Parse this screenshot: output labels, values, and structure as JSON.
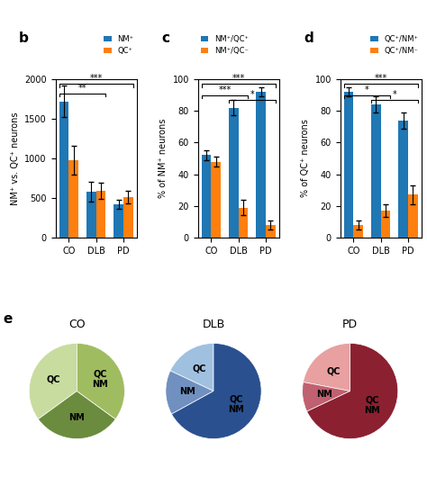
{
  "chart_data": [
    {
      "type": "bar",
      "title": "b",
      "ylabel": "NM⁺ vs. QC⁺ neurons",
      "categories": [
        "CO",
        "DLB",
        "PD"
      ],
      "series": [
        {
          "name": "NM⁺",
          "values": [
            1720,
            580,
            420
          ],
          "errors": [
            200,
            120,
            60
          ]
        },
        {
          "name": "QC⁺",
          "values": [
            980,
            590,
            510
          ],
          "errors": [
            180,
            100,
            80
          ]
        }
      ],
      "ylim": [
        0,
        2000
      ],
      "yticks": [
        0,
        500,
        1000,
        1500,
        2000
      ],
      "legend": "upper right",
      "annotations": [
        {
          "text": "**",
          "from": "CO",
          "to": "DLB",
          "y": 1820
        },
        {
          "text": "***",
          "from": "CO",
          "to": "PD",
          "y": 1940
        }
      ]
    },
    {
      "type": "bar",
      "title": "c",
      "ylabel": "% of NM⁺ neurons",
      "categories": [
        "CO",
        "DLB",
        "PD"
      ],
      "series": [
        {
          "name": "NM⁺/QC⁺",
          "values": [
            52,
            82,
            92
          ],
          "errors": [
            3,
            5,
            3
          ]
        },
        {
          "name": "NM⁺/QC⁻",
          "values": [
            48,
            19,
            8
          ],
          "errors": [
            3,
            5,
            3
          ]
        }
      ],
      "ylim": [
        0,
        100
      ],
      "yticks": [
        0,
        20,
        40,
        60,
        80,
        100
      ],
      "legend": "upper left",
      "annotations": [
        {
          "text": "***",
          "from": "CO",
          "to": "DLB",
          "y": 90
        },
        {
          "text": "***",
          "from": "CO",
          "to": "PD",
          "y": 97
        },
        {
          "text": "*",
          "from": "DLB",
          "to": "PD",
          "y": 87
        }
      ]
    },
    {
      "type": "bar",
      "title": "d",
      "ylabel": "% of QC⁺ neurons",
      "categories": [
        "CO",
        "DLB",
        "PD"
      ],
      "series": [
        {
          "name": "QC⁺/NM⁺",
          "values": [
            92,
            84,
            74
          ],
          "errors": [
            3,
            5,
            5
          ]
        },
        {
          "name": "QC⁺/NM⁻",
          "values": [
            8,
            17,
            27
          ],
          "errors": [
            3,
            4,
            6
          ]
        }
      ],
      "ylim": [
        0,
        100
      ],
      "yticks": [
        0,
        20,
        40,
        60,
        80,
        100
      ],
      "legend": "upper right",
      "annotations": [
        {
          "text": "*",
          "from": "CO",
          "to": "DLB",
          "y": 90
        },
        {
          "text": "***",
          "from": "CO",
          "to": "PD",
          "y": 97
        },
        {
          "text": "*",
          "from": "DLB",
          "to": "PD",
          "y": 87
        }
      ]
    },
    {
      "type": "pie",
      "title": "CO",
      "categories": [
        "QC",
        "NM",
        "QC\nNM"
      ],
      "values": [
        35,
        30,
        35
      ],
      "colors": [
        "#c8dca0",
        "#6b8c3e",
        "#a0bc60"
      ],
      "annotations": [
        {
          "text": "e"
        }
      ]
    },
    {
      "type": "pie",
      "title": "DLB",
      "categories": [
        "QC",
        "NM",
        "QC\nNM"
      ],
      "values": [
        18,
        15,
        67
      ],
      "colors": [
        "#a0c0e0",
        "#7090c0",
        "#2a5090"
      ]
    },
    {
      "type": "pie",
      "title": "PD",
      "categories": [
        "QC",
        "NM",
        "QC\nNM"
      ],
      "values": [
        22,
        10,
        68
      ],
      "colors": [
        "#e8a0a0",
        "#c06070",
        "#8b2030"
      ]
    }
  ]
}
